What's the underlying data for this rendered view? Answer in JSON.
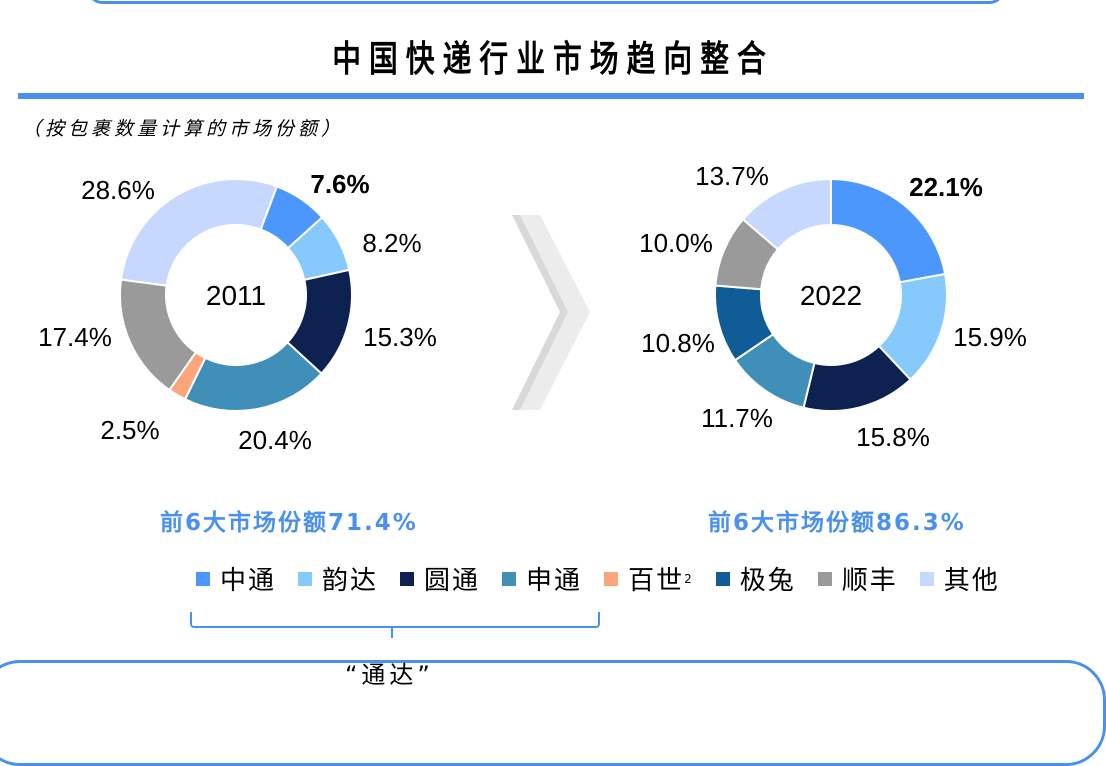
{
  "title": "中国快递行业市场趋向整合",
  "subtitle": "（按包裹数量计算的市场份额）",
  "legend": [
    {
      "label": "中通",
      "color": "#4b97fb"
    },
    {
      "label": "韵达",
      "color": "#86c9fc"
    },
    {
      "label": "圆通",
      "color": "#0d2250"
    },
    {
      "label": "申通",
      "color": "#3f8fb8"
    },
    {
      "label": "百世",
      "sup": "2",
      "color": "#fca57b"
    },
    {
      "label": "极兔",
      "color": "#0f5c96"
    },
    {
      "label": "顺丰",
      "color": "#9a9a9a"
    },
    {
      "label": "其他",
      "color": "#c6d8fd"
    }
  ],
  "chart_data": [
    {
      "type": "pie",
      "title": "2011",
      "categories": [
        "中通",
        "韵达",
        "圆通",
        "申通",
        "百世",
        "顺丰",
        "其他"
      ],
      "values": [
        7.6,
        8.2,
        15.3,
        20.4,
        2.5,
        17.4,
        28.6
      ],
      "labels": [
        "7.6%",
        "8.2%",
        "15.3%",
        "20.4%",
        "2.5%",
        "17.4%",
        "28.6%"
      ],
      "bold_label": "中通"
    },
    {
      "type": "pie",
      "title": "2022",
      "categories": [
        "中通",
        "韵达",
        "圆通",
        "申通",
        "极兔",
        "顺丰",
        "其他"
      ],
      "values": [
        22.1,
        15.9,
        15.8,
        11.7,
        10.8,
        10.0,
        13.7
      ],
      "labels": [
        "22.1%",
        "15.9%",
        "15.8%",
        "11.7%",
        "10.8%",
        "10.0%",
        "13.7%"
      ],
      "bold_label": "中通"
    }
  ],
  "top6_2011": "前6大市场份额71.4%",
  "top6_2022": "前6大市场份额86.3%",
  "brace_label": "“通达”"
}
